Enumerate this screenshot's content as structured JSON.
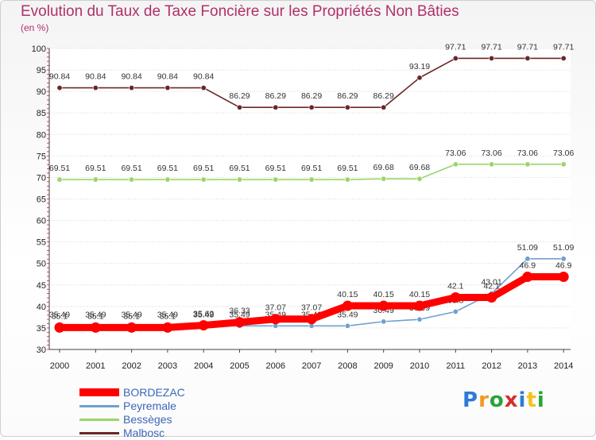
{
  "title": "Evolution du Taux de Taxe Foncière sur les Propriétés Non Bâties",
  "unit_label": "(en %)",
  "logo": {
    "text": "Proxiti",
    "letters": [
      "P",
      "r",
      "o",
      "x",
      "i",
      "t",
      "i"
    ],
    "colors": [
      "#2d7bd6",
      "#f29a1d",
      "#27a33a",
      "#d62d2d",
      "#2d7bd6",
      "#f2c21d",
      "#27a33a"
    ]
  },
  "chart_data": {
    "type": "line",
    "title": "Evolution du Taux de Taxe Foncière sur les Propriétés Non Bâties",
    "ylabel": "(en %)",
    "xlabel": "",
    "ylim": [
      30,
      100
    ],
    "yticks": [
      30,
      35,
      40,
      45,
      50,
      55,
      60,
      65,
      70,
      75,
      80,
      85,
      90,
      95,
      100
    ],
    "x": [
      2000,
      2001,
      2002,
      2003,
      2004,
      2005,
      2006,
      2007,
      2008,
      2009,
      2010,
      2011,
      2012,
      2013,
      2014
    ],
    "series": [
      {
        "name": "Malbosc",
        "color": "#6b2727",
        "values": [
          90.84,
          90.84,
          90.84,
          90.84,
          90.84,
          86.29,
          86.29,
          86.29,
          86.29,
          86.29,
          93.19,
          97.71,
          97.71,
          97.71,
          97.71
        ],
        "labels": [
          "90.84",
          "90.84",
          "90.84",
          "90.84",
          "90.84",
          "86.29",
          "86.29",
          "86.29",
          "86.29",
          "86.29",
          "93.19",
          "97.71",
          "97.71",
          "97.71",
          "97.71"
        ]
      },
      {
        "name": "Bessèges",
        "color": "#9ad56a",
        "values": [
          69.51,
          69.51,
          69.51,
          69.51,
          69.51,
          69.51,
          69.51,
          69.51,
          69.51,
          69.68,
          69.68,
          73.06,
          73.06,
          73.06,
          73.06
        ],
        "labels": [
          "69.51",
          "69.51",
          "69.51",
          "69.51",
          "69.51",
          "69.51",
          "69.51",
          "69.51",
          "69.51",
          "69.68",
          "69.68",
          "73.06",
          "73.06",
          "73.06",
          "73.06"
        ]
      },
      {
        "name": "Peyremale",
        "color": "#6fa0cf",
        "values": [
          35.49,
          35.49,
          35.49,
          35.49,
          35.49,
          35.49,
          35.49,
          35.49,
          35.49,
          36.49,
          36.99,
          38.8,
          43.01,
          51.09,
          51.09
        ],
        "labels": [
          "35.49",
          "35.49",
          "35.49",
          "35.49",
          "35.49",
          "35.49",
          "35.49",
          "35.49",
          "35.49",
          "36.49",
          "36.99",
          "38.8",
          "43.01",
          "51.09",
          "51.09"
        ]
      },
      {
        "name": "BORDEZAC",
        "color": "#ff0000",
        "values": [
          35.1,
          35.1,
          35.1,
          35.1,
          35.62,
          36.33,
          37.07,
          37.07,
          40.15,
          40.15,
          40.15,
          42.1,
          42.1,
          46.9,
          46.9
        ],
        "labels": [
          "35.1",
          "35.1",
          "35.1",
          "35.1",
          "35.62",
          "36.33",
          "37.07",
          "37.07",
          "40.15",
          "40.15",
          "40.15",
          "42.1",
          "42.1",
          "46.9",
          "46.9"
        ]
      }
    ]
  },
  "legend": [
    {
      "name": "BORDEZAC",
      "color": "#ff0000"
    },
    {
      "name": "Peyremale",
      "color": "#6fa0cf"
    },
    {
      "name": "Bessèges",
      "color": "#9ad56a"
    },
    {
      "name": "Malbosc",
      "color": "#6b2727"
    }
  ]
}
